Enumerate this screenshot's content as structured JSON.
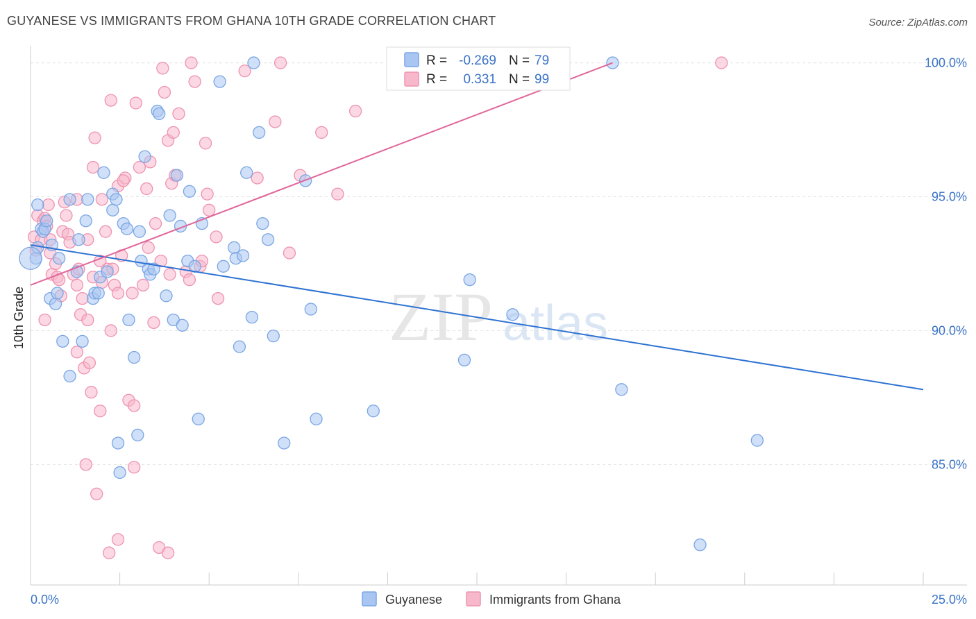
{
  "title": "GUYANESE VS IMMIGRANTS FROM GHANA 10TH GRADE CORRELATION CHART",
  "source": "Source: ZipAtlas.com",
  "watermark": {
    "zip": "ZIP",
    "atlas": "atlas"
  },
  "colors": {
    "blue_fill": "#a9c6f2",
    "blue_stroke": "#7aa6e4",
    "blue_line": "#2e72d2",
    "pink_fill": "#f7b8cc",
    "pink_stroke": "#ee93b0",
    "pink_line": "#e0669a",
    "grid": "#e3e3e3",
    "axis_label": "#3a73c8"
  },
  "legend_top": {
    "rows": [
      {
        "r_label": "R =",
        "r_value": "-0.269",
        "n_label": "N =",
        "n_value": "79",
        "series": "Guyanese"
      },
      {
        "r_label": "R =",
        "r_value": "0.331",
        "n_label": "N =",
        "n_value": "99",
        "series": "Immigrants from Ghana"
      }
    ]
  },
  "chart_data": {
    "type": "scatter",
    "title": "GUYANESE VS IMMIGRANTS FROM GHANA 10TH GRADE CORRELATION CHART",
    "xlabel": "",
    "ylabel": "10th Grade",
    "xlim": [
      0,
      25
    ],
    "ylim": [
      80.5,
      101.0
    ],
    "x_tick_labels": [
      "0.0%",
      "25.0%"
    ],
    "y_ticks": [
      85,
      90,
      95,
      100
    ],
    "y_tick_labels": [
      "85.0%",
      "90.0%",
      "95.0%",
      "100.0%"
    ],
    "grid": true,
    "legend_position": "bottom",
    "series": [
      {
        "name": "Guyanese",
        "color": "#a9c6f2",
        "trend": {
          "x": [
            0.0,
            25.0
          ],
          "y": [
            93.2,
            87.8
          ]
        },
        "points": [
          [
            0.15,
            92.7
          ],
          [
            0.2,
            94.7
          ],
          [
            0.2,
            93.1
          ],
          [
            0.3,
            93.8
          ],
          [
            0.35,
            93.7
          ],
          [
            0.4,
            93.8
          ],
          [
            0.45,
            94.1
          ],
          [
            0.55,
            91.2
          ],
          [
            0.6,
            93.2
          ],
          [
            0.7,
            91.0
          ],
          [
            0.75,
            91.4
          ],
          [
            0.8,
            92.7
          ],
          [
            0.9,
            89.6
          ],
          [
            1.1,
            88.3
          ],
          [
            1.1,
            94.9
          ],
          [
            1.3,
            92.2
          ],
          [
            1.35,
            93.4
          ],
          [
            1.45,
            89.6
          ],
          [
            1.55,
            94.1
          ],
          [
            1.6,
            94.9
          ],
          [
            1.75,
            91.2
          ],
          [
            1.8,
            91.4
          ],
          [
            1.9,
            91.4
          ],
          [
            1.95,
            92.0
          ],
          [
            2.05,
            95.9
          ],
          [
            2.15,
            92.2
          ],
          [
            2.3,
            95.1
          ],
          [
            2.3,
            94.5
          ],
          [
            2.4,
            94.9
          ],
          [
            2.45,
            85.8
          ],
          [
            2.5,
            84.7
          ],
          [
            2.6,
            94.0
          ],
          [
            2.7,
            93.8
          ],
          [
            2.75,
            90.4
          ],
          [
            2.9,
            89.0
          ],
          [
            3.0,
            86.1
          ],
          [
            3.05,
            93.7
          ],
          [
            3.1,
            92.6
          ],
          [
            3.2,
            96.5
          ],
          [
            3.3,
            92.3
          ],
          [
            3.35,
            92.1
          ],
          [
            3.45,
            92.3
          ],
          [
            3.55,
            98.2
          ],
          [
            3.6,
            98.1
          ],
          [
            3.8,
            91.3
          ],
          [
            3.9,
            94.3
          ],
          [
            4.0,
            90.4
          ],
          [
            4.1,
            95.8
          ],
          [
            4.2,
            93.9
          ],
          [
            4.25,
            90.2
          ],
          [
            4.4,
            92.6
          ],
          [
            4.45,
            95.2
          ],
          [
            4.6,
            92.4
          ],
          [
            4.7,
            86.7
          ],
          [
            4.8,
            94.0
          ],
          [
            5.3,
            99.3
          ],
          [
            5.4,
            92.4
          ],
          [
            5.7,
            93.1
          ],
          [
            5.75,
            92.7
          ],
          [
            5.85,
            89.4
          ],
          [
            5.95,
            92.8
          ],
          [
            6.05,
            95.9
          ],
          [
            6.2,
            90.5
          ],
          [
            6.25,
            100.0
          ],
          [
            6.4,
            97.4
          ],
          [
            6.5,
            94.0
          ],
          [
            6.65,
            93.4
          ],
          [
            6.8,
            89.8
          ],
          [
            7.1,
            85.8
          ],
          [
            7.7,
            95.6
          ],
          [
            7.85,
            90.8
          ],
          [
            8.0,
            86.7
          ],
          [
            9.6,
            87.0
          ],
          [
            12.15,
            88.9
          ],
          [
            12.3,
            91.9
          ],
          [
            13.5,
            90.6
          ],
          [
            16.3,
            100.0
          ],
          [
            16.55,
            87.8
          ],
          [
            20.35,
            85.9
          ],
          [
            18.75,
            82.0
          ]
        ]
      },
      {
        "name": "Immigrants from Ghana",
        "color": "#f7b8cc",
        "trend": {
          "x": [
            0.0,
            16.3
          ],
          "y": [
            91.7,
            100.0
          ]
        },
        "points": [
          [
            0.1,
            93.5
          ],
          [
            0.15,
            93.0
          ],
          [
            0.2,
            94.3
          ],
          [
            0.3,
            93.4
          ],
          [
            0.35,
            94.1
          ],
          [
            0.4,
            94.2
          ],
          [
            0.45,
            93.9
          ],
          [
            0.5,
            94.7
          ],
          [
            0.55,
            93.4
          ],
          [
            0.6,
            92.1
          ],
          [
            0.7,
            92.5
          ],
          [
            0.75,
            92.0
          ],
          [
            0.8,
            91.9
          ],
          [
            0.85,
            91.3
          ],
          [
            0.9,
            93.7
          ],
          [
            0.95,
            94.8
          ],
          [
            1.0,
            94.3
          ],
          [
            1.05,
            93.6
          ],
          [
            1.1,
            93.3
          ],
          [
            1.2,
            92.1
          ],
          [
            1.3,
            91.7
          ],
          [
            1.3,
            94.9
          ],
          [
            1.35,
            92.3
          ],
          [
            1.45,
            91.2
          ],
          [
            1.5,
            88.6
          ],
          [
            1.55,
            85.0
          ],
          [
            1.6,
            93.4
          ],
          [
            1.65,
            88.8
          ],
          [
            1.7,
            87.7
          ],
          [
            1.75,
            96.1
          ],
          [
            1.8,
            97.2
          ],
          [
            1.85,
            83.9
          ],
          [
            1.95,
            87.0
          ],
          [
            2.0,
            94.9
          ],
          [
            2.1,
            93.7
          ],
          [
            2.15,
            92.3
          ],
          [
            2.25,
            90.0
          ],
          [
            2.3,
            92.3
          ],
          [
            2.35,
            91.7
          ],
          [
            2.45,
            91.4
          ],
          [
            2.55,
            92.8
          ],
          [
            2.65,
            95.7
          ],
          [
            2.75,
            87.4
          ],
          [
            2.85,
            91.4
          ],
          [
            2.9,
            87.2
          ],
          [
            2.95,
            98.5
          ],
          [
            3.05,
            96.1
          ],
          [
            3.15,
            91.7
          ],
          [
            3.25,
            95.3
          ],
          [
            3.35,
            96.3
          ],
          [
            3.45,
            90.3
          ],
          [
            3.5,
            94.0
          ],
          [
            3.65,
            92.6
          ],
          [
            3.7,
            99.8
          ],
          [
            3.75,
            98.9
          ],
          [
            3.85,
            97.1
          ],
          [
            3.95,
            95.5
          ],
          [
            4.0,
            97.4
          ],
          [
            4.05,
            95.8
          ],
          [
            4.15,
            98.1
          ],
          [
            4.35,
            92.2
          ],
          [
            4.45,
            91.9
          ],
          [
            4.5,
            100.0
          ],
          [
            4.6,
            99.3
          ],
          [
            4.75,
            92.4
          ],
          [
            4.8,
            92.6
          ],
          [
            4.9,
            97.0
          ],
          [
            4.95,
            95.1
          ],
          [
            5.0,
            94.5
          ],
          [
            5.2,
            93.5
          ],
          [
            5.25,
            91.2
          ],
          [
            6.0,
            99.7
          ],
          [
            6.35,
            95.7
          ],
          [
            6.85,
            97.8
          ],
          [
            7.0,
            100.0
          ],
          [
            7.25,
            92.9
          ],
          [
            7.55,
            95.8
          ],
          [
            8.15,
            97.4
          ],
          [
            8.6,
            95.1
          ],
          [
            9.1,
            98.2
          ],
          [
            1.3,
            89.2
          ],
          [
            1.4,
            90.6
          ],
          [
            1.6,
            90.4
          ],
          [
            1.75,
            92.0
          ],
          [
            2.0,
            91.8
          ],
          [
            2.25,
            98.6
          ],
          [
            2.45,
            95.4
          ],
          [
            2.6,
            95.6
          ],
          [
            0.4,
            90.4
          ],
          [
            0.55,
            92.9
          ],
          [
            2.2,
            81.7
          ],
          [
            2.45,
            82.2
          ],
          [
            3.6,
            81.9
          ],
          [
            3.85,
            81.7
          ],
          [
            2.9,
            84.9
          ],
          [
            3.3,
            93.1
          ],
          [
            3.9,
            92.1
          ],
          [
            19.35,
            100.0
          ],
          [
            1.95,
            92.6
          ]
        ]
      }
    ]
  }
}
